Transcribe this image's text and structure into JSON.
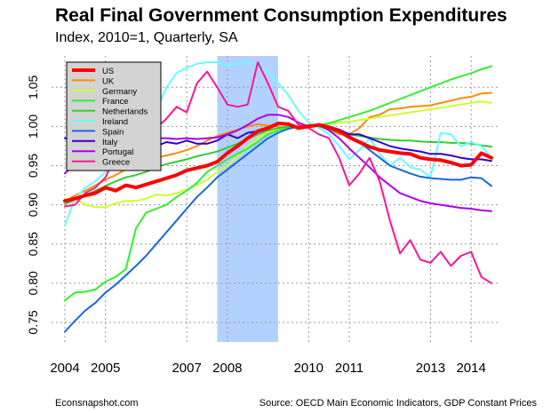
{
  "title": "Real Final Government Consumption Expenditures",
  "subtitle": "Index, 2010=1, Quarterly, SA",
  "footer_left": "Econsnapshot.com",
  "footer_right": "Source: OECD Main Economic Indicators, GDP Constant Prices",
  "chart_data": {
    "type": "line",
    "title": "Real Final Government Consumption Expenditures",
    "subtitle": "Index, 2010=1, Quarterly, SA",
    "xlabel": "",
    "ylabel": "",
    "x_ticks": [
      "2004",
      "2005",
      "2007",
      "2008",
      "2010",
      "2011",
      "2013",
      "2014"
    ],
    "y_ticks": [
      "0.75",
      "0.80",
      "0.85",
      "0.90",
      "0.95",
      "1.00",
      "1.05"
    ],
    "ylim": [
      0.725,
      1.09
    ],
    "grid": true,
    "legend_position": "top-left",
    "recession_shading": {
      "from": "2007 Q4",
      "to": "2009 Q2",
      "color": "#b3d1ff"
    },
    "x": [
      "2004 Q1",
      "2004 Q2",
      "2004 Q3",
      "2004 Q4",
      "2005 Q1",
      "2005 Q2",
      "2005 Q3",
      "2005 Q4",
      "2006 Q1",
      "2006 Q2",
      "2006 Q3",
      "2006 Q4",
      "2007 Q1",
      "2007 Q2",
      "2007 Q3",
      "2007 Q4",
      "2008 Q1",
      "2008 Q2",
      "2008 Q3",
      "2008 Q4",
      "2009 Q1",
      "2009 Q2",
      "2009 Q3",
      "2009 Q4",
      "2010 Q1",
      "2010 Q2",
      "2010 Q3",
      "2010 Q4",
      "2011 Q1",
      "2011 Q2",
      "2011 Q3",
      "2011 Q4",
      "2012 Q1",
      "2012 Q2",
      "2012 Q3",
      "2012 Q4",
      "2013 Q1",
      "2013 Q2",
      "2013 Q3",
      "2013 Q4",
      "2014 Q1",
      "2014 Q2",
      "2014 Q3"
    ],
    "series": [
      {
        "name": "US",
        "color": "#ff0000",
        "width": 4,
        "values": [
          0.905,
          0.908,
          0.912,
          0.915,
          0.922,
          0.918,
          0.925,
          0.922,
          0.926,
          0.93,
          0.934,
          0.938,
          0.944,
          0.947,
          0.95,
          0.955,
          0.966,
          0.975,
          0.985,
          0.994,
          0.998,
          1.004,
          1.003,
          0.998,
          1.0,
          1.002,
          0.999,
          0.994,
          0.986,
          0.98,
          0.974,
          0.97,
          0.968,
          0.966,
          0.965,
          0.96,
          0.958,
          0.957,
          0.954,
          0.95,
          0.951,
          0.966,
          0.96
        ]
      },
      {
        "name": "UK",
        "color": "#ff8c00",
        "width": 2,
        "values": [
          0.904,
          0.912,
          0.918,
          0.925,
          0.932,
          0.938,
          0.945,
          0.95,
          0.955,
          0.96,
          0.963,
          0.966,
          0.97,
          0.975,
          0.982,
          0.988,
          0.992,
          0.996,
          1.0,
          1.003,
          1.001,
          1.0,
          0.997,
          1.0,
          1.002,
          1.001,
          0.996,
          0.99,
          0.99,
          0.998,
          1.012,
          1.015,
          1.022,
          1.023,
          1.025,
          1.026,
          1.027,
          1.03,
          1.033,
          1.036,
          1.038,
          1.042,
          1.043
        ]
      },
      {
        "name": "Germany",
        "color": "#ccff33",
        "width": 2,
        "values": [
          0.902,
          0.908,
          0.9,
          0.897,
          0.897,
          0.902,
          0.905,
          0.905,
          0.908,
          0.913,
          0.912,
          0.915,
          0.92,
          0.925,
          0.932,
          0.942,
          0.95,
          0.962,
          0.975,
          0.985,
          0.994,
          0.996,
          0.998,
          1.0,
          0.999,
          1.002,
          1.003,
          1.005,
          1.006,
          1.008,
          1.01,
          1.012,
          1.014,
          1.016,
          1.018,
          1.02,
          1.022,
          1.024,
          1.026,
          1.028,
          1.03,
          1.032,
          1.03
        ]
      },
      {
        "name": "France",
        "color": "#33ee33",
        "width": 2,
        "values": [
          0.778,
          0.788,
          0.789,
          0.792,
          0.802,
          0.808,
          0.818,
          0.87,
          0.89,
          0.895,
          0.9,
          0.91,
          0.918,
          0.928,
          0.942,
          0.95,
          0.958,
          0.965,
          0.972,
          0.98,
          0.99,
          0.995,
          0.998,
          1.0,
          1.001,
          1.002,
          1.004,
          1.008,
          1.012,
          1.016,
          1.02,
          1.025,
          1.03,
          1.035,
          1.04,
          1.045,
          1.05,
          1.055,
          1.06,
          1.064,
          1.068,
          1.073,
          1.077
        ]
      },
      {
        "name": "Netherlands",
        "color": "#33cc33",
        "width": 2,
        "values": [
          0.901,
          0.906,
          0.912,
          0.918,
          0.924,
          0.93,
          0.935,
          0.938,
          0.942,
          0.948,
          0.952,
          0.955,
          0.958,
          0.962,
          0.965,
          0.968,
          0.973,
          0.978,
          0.984,
          0.99,
          0.995,
          0.998,
          1.0,
          1.0,
          1.001,
          1.0,
          0.996,
          0.992,
          0.99,
          0.988,
          0.986,
          0.984,
          0.983,
          0.982,
          0.982,
          0.981,
          0.98,
          0.98,
          0.979,
          0.979,
          0.978,
          0.976,
          0.974
        ]
      },
      {
        "name": "Ireland",
        "color": "#66ffff",
        "width": 2,
        "values": [
          0.874,
          0.908,
          0.922,
          0.93,
          0.942,
          0.958,
          0.968,
          0.988,
          1.01,
          1.02,
          1.05,
          1.068,
          1.075,
          1.08,
          1.082,
          1.082,
          1.078,
          1.08,
          1.082,
          1.078,
          1.07,
          1.055,
          1.04,
          1.02,
          1.005,
          0.998,
          0.99,
          0.975,
          0.958,
          0.97,
          0.985,
          0.965,
          0.95,
          0.96,
          0.948,
          0.945,
          0.935,
          0.992,
          0.99,
          0.975,
          0.98,
          0.975,
          0.96
        ]
      },
      {
        "name": "Spain",
        "color": "#1a66dd",
        "width": 2,
        "values": [
          0.738,
          0.752,
          0.765,
          0.775,
          0.788,
          0.798,
          0.81,
          0.822,
          0.835,
          0.85,
          0.865,
          0.88,
          0.895,
          0.91,
          0.922,
          0.935,
          0.945,
          0.955,
          0.965,
          0.975,
          0.985,
          0.992,
          0.997,
          1.0,
          1.001,
          1.002,
          1.0,
          0.996,
          0.988,
          0.98,
          0.97,
          0.96,
          0.95,
          0.945,
          0.94,
          0.936,
          0.934,
          0.933,
          0.932,
          0.932,
          0.935,
          0.934,
          0.924
        ]
      },
      {
        "name": "Italy",
        "color": "#3300cc",
        "width": 2,
        "values": [
          0.985,
          0.983,
          0.978,
          0.98,
          0.983,
          0.975,
          0.975,
          0.978,
          0.982,
          0.975,
          0.98,
          0.978,
          0.982,
          0.978,
          0.978,
          0.982,
          0.99,
          0.985,
          0.992,
          0.994,
          0.998,
          1.005,
          1.004,
          0.998,
          1.0,
          1.003,
          1.0,
          0.996,
          0.99,
          0.99,
          0.985,
          0.98,
          0.975,
          0.972,
          0.97,
          0.968,
          0.965,
          0.965,
          0.963,
          0.96,
          0.958,
          0.958,
          0.956
        ]
      },
      {
        "name": "Portugal",
        "color": "#aa00ee",
        "width": 2,
        "values": [
          0.94,
          0.952,
          0.96,
          0.968,
          0.975,
          0.978,
          0.98,
          0.982,
          0.983,
          0.985,
          0.985,
          0.984,
          0.985,
          0.984,
          0.985,
          0.986,
          0.99,
          0.995,
          1.002,
          1.01,
          1.015,
          1.015,
          1.012,
          1.005,
          1.0,
          1.002,
          0.995,
          0.985,
          0.972,
          0.96,
          0.948,
          0.935,
          0.925,
          0.915,
          0.91,
          0.905,
          0.902,
          0.9,
          0.898,
          0.896,
          0.895,
          0.893,
          0.892
        ]
      },
      {
        "name": "Greece",
        "color": "#ff1493",
        "width": 2,
        "values": [
          0.898,
          0.9,
          0.915,
          0.922,
          0.935,
          0.962,
          0.972,
          0.985,
          0.995,
          0.998,
          1.01,
          1.025,
          1.018,
          1.055,
          1.07,
          1.05,
          1.028,
          1.025,
          1.028,
          1.082,
          1.055,
          1.025,
          1.02,
          1.002,
          0.998,
          0.99,
          0.985,
          0.96,
          0.925,
          0.94,
          0.96,
          0.93,
          0.88,
          0.838,
          0.855,
          0.83,
          0.826,
          0.84,
          0.822,
          0.835,
          0.84,
          0.808,
          0.8
        ]
      }
    ]
  }
}
